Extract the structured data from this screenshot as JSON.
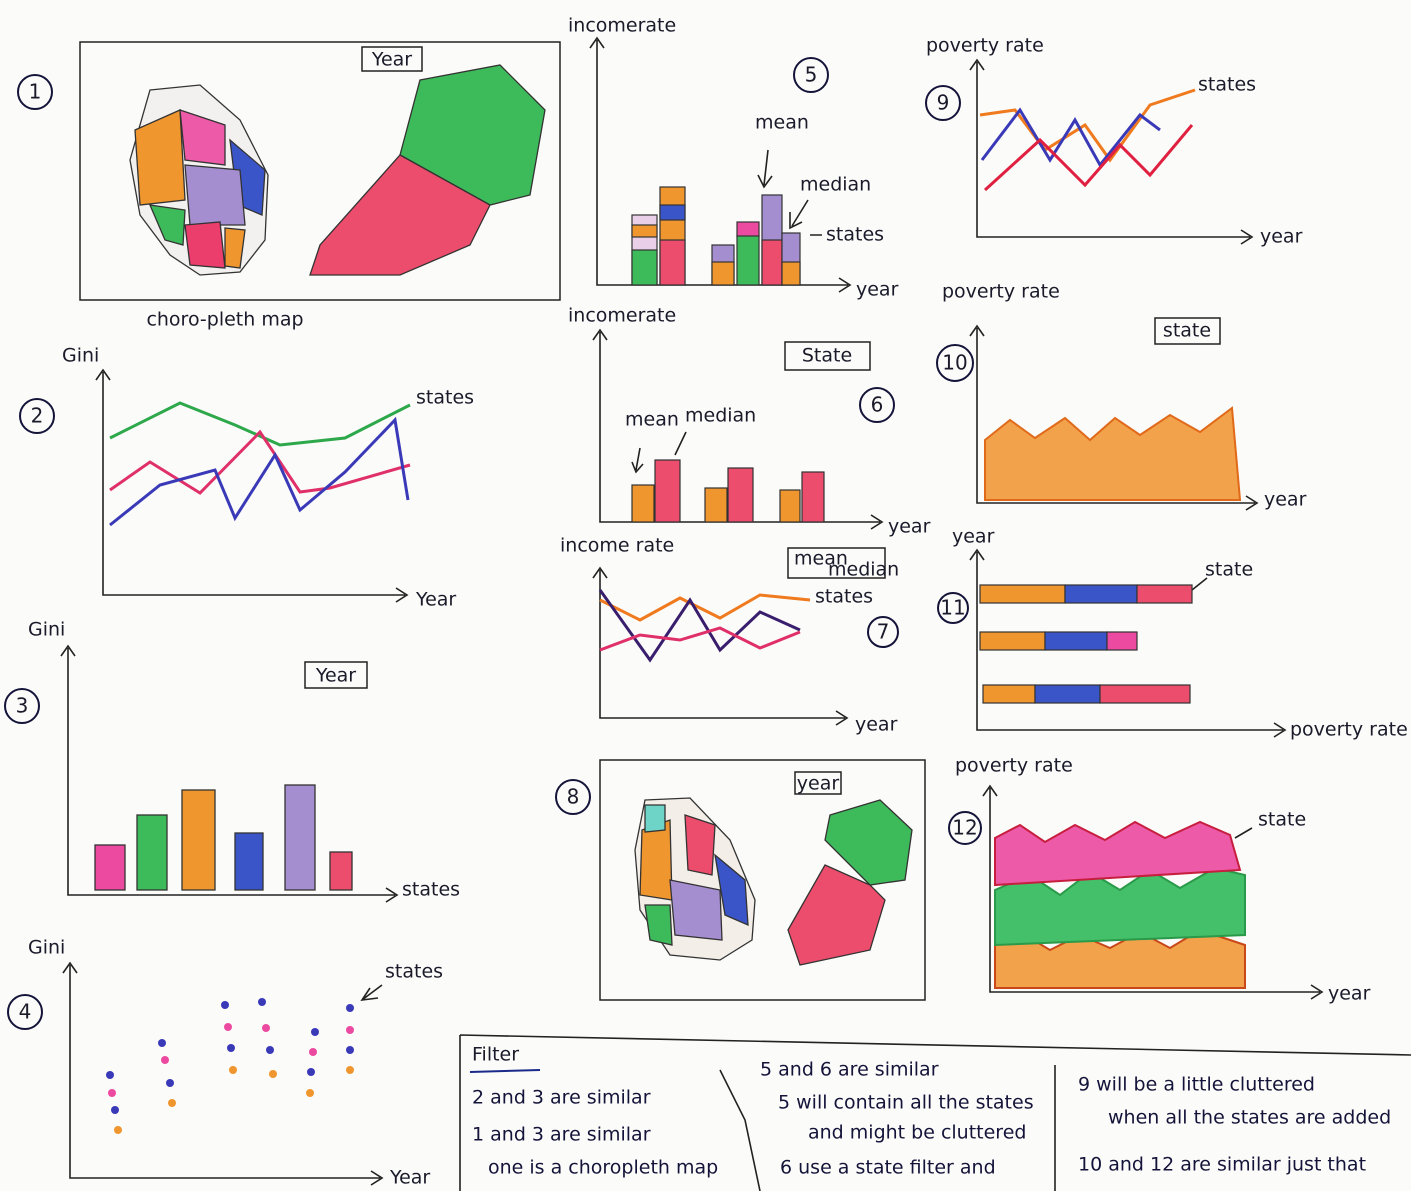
{
  "panels": [
    {
      "number": "1",
      "button": "Year",
      "caption": "choro-pleth map"
    },
    {
      "number": "2",
      "y_label": "Gini",
      "x_label": "Year",
      "series_label": "states"
    },
    {
      "number": "3",
      "y_label": "Gini",
      "button": "Year",
      "x_label": "states"
    },
    {
      "number": "4",
      "y_label": "Gini",
      "x_label": "Year",
      "series_label": "states"
    },
    {
      "number": "5",
      "y_label": "incomerate",
      "x_label": "year",
      "mean": "mean",
      "median": "median",
      "series_label": "states"
    },
    {
      "number": "6",
      "y_label": "incomerate",
      "button": "State",
      "mean": "mean",
      "median": "median",
      "x_label": "year"
    },
    {
      "number": "7",
      "y_label": "income rate",
      "button_top": "mean",
      "button_bottom": "median",
      "series_label": "states",
      "x_label": "year"
    },
    {
      "number": "8",
      "button": "year"
    },
    {
      "number": "9",
      "y_label": "poverty rate",
      "series_label": "states",
      "x_label": "year"
    },
    {
      "number": "10",
      "y_label": "poverty rate",
      "button": "state",
      "x_label": "year"
    },
    {
      "number": "11",
      "y_label": "year",
      "series_label": "state",
      "x_label": "poverty rate"
    },
    {
      "number": "12",
      "y_label": "poverty rate",
      "series_label": "state",
      "x_label": "year"
    }
  ],
  "notes": {
    "title": "Filter",
    "columns": [
      [
        "2 and 3 are similar",
        "1 and 3 are similar",
        "one is a choropleth map"
      ],
      [
        "5 and 6 are similar",
        "5 will contain all the states",
        "and might be cluttered",
        "6 use a state filter and"
      ],
      [
        "9 will be a little cluttered",
        "when all the states are added",
        "10 and 12 are similar just that"
      ]
    ]
  }
}
